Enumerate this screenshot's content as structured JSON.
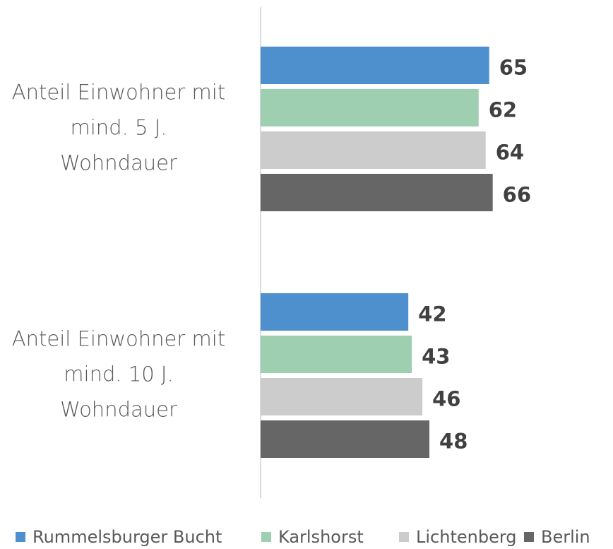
{
  "chart_data": {
    "type": "barh",
    "categories": [
      [
        "Anteil Einwohner mit",
        "mind. 5 J.",
        "Wohndauer"
      ],
      [
        "Anteil Einwohner mit",
        "mind. 10 J.",
        "Wohndauer"
      ]
    ],
    "series": [
      {
        "name": "Rummelsburger Bucht",
        "color": "#4e8fce",
        "values": [
          65,
          42
        ]
      },
      {
        "name": "Karlshorst",
        "color": "#9dcfb0",
        "values": [
          62,
          43
        ]
      },
      {
        "name": "Lichtenberg",
        "color": "#cccccc",
        "values": [
          64,
          46
        ]
      },
      {
        "name": "Berlin",
        "color": "#666666",
        "values": [
          66,
          48
        ]
      }
    ],
    "legend": "bottom"
  }
}
